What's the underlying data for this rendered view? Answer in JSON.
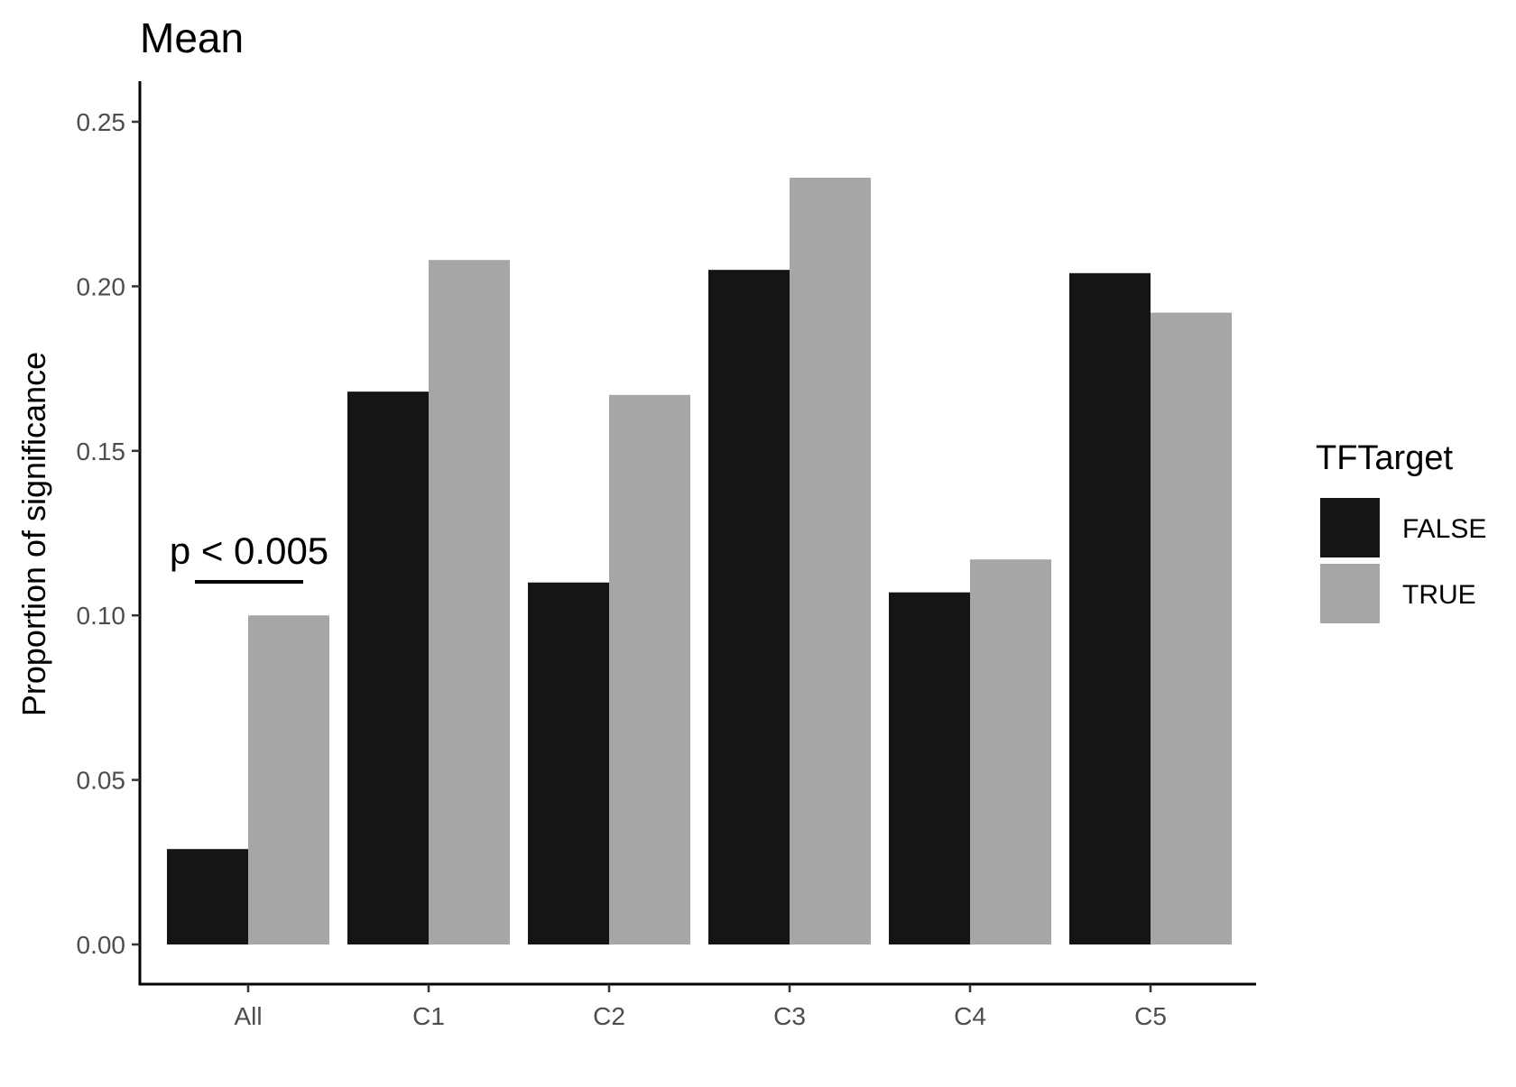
{
  "chart_data": {
    "type": "bar",
    "title": "Mean",
    "xlabel": "",
    "ylabel": "Proportion of significance",
    "categories": [
      "All",
      "C1",
      "C2",
      "C3",
      "C4",
      "C5"
    ],
    "series": [
      {
        "name": "FALSE",
        "color": "#151515",
        "values": [
          0.029,
          0.168,
          0.11,
          0.205,
          0.107,
          0.204
        ]
      },
      {
        "name": "TRUE",
        "color": "#a6a6a6",
        "values": [
          0.1,
          0.208,
          0.167,
          0.233,
          0.117,
          0.192
        ]
      }
    ],
    "ylim": [
      0,
      0.25
    ],
    "yticks": [
      "0.00",
      "0.05",
      "0.10",
      "0.15",
      "0.20",
      "0.25"
    ],
    "legend": {
      "title": "TFTarget",
      "placement": "right"
    },
    "annotation": {
      "text": "p < 0.005",
      "category": "All"
    },
    "grid": false
  }
}
